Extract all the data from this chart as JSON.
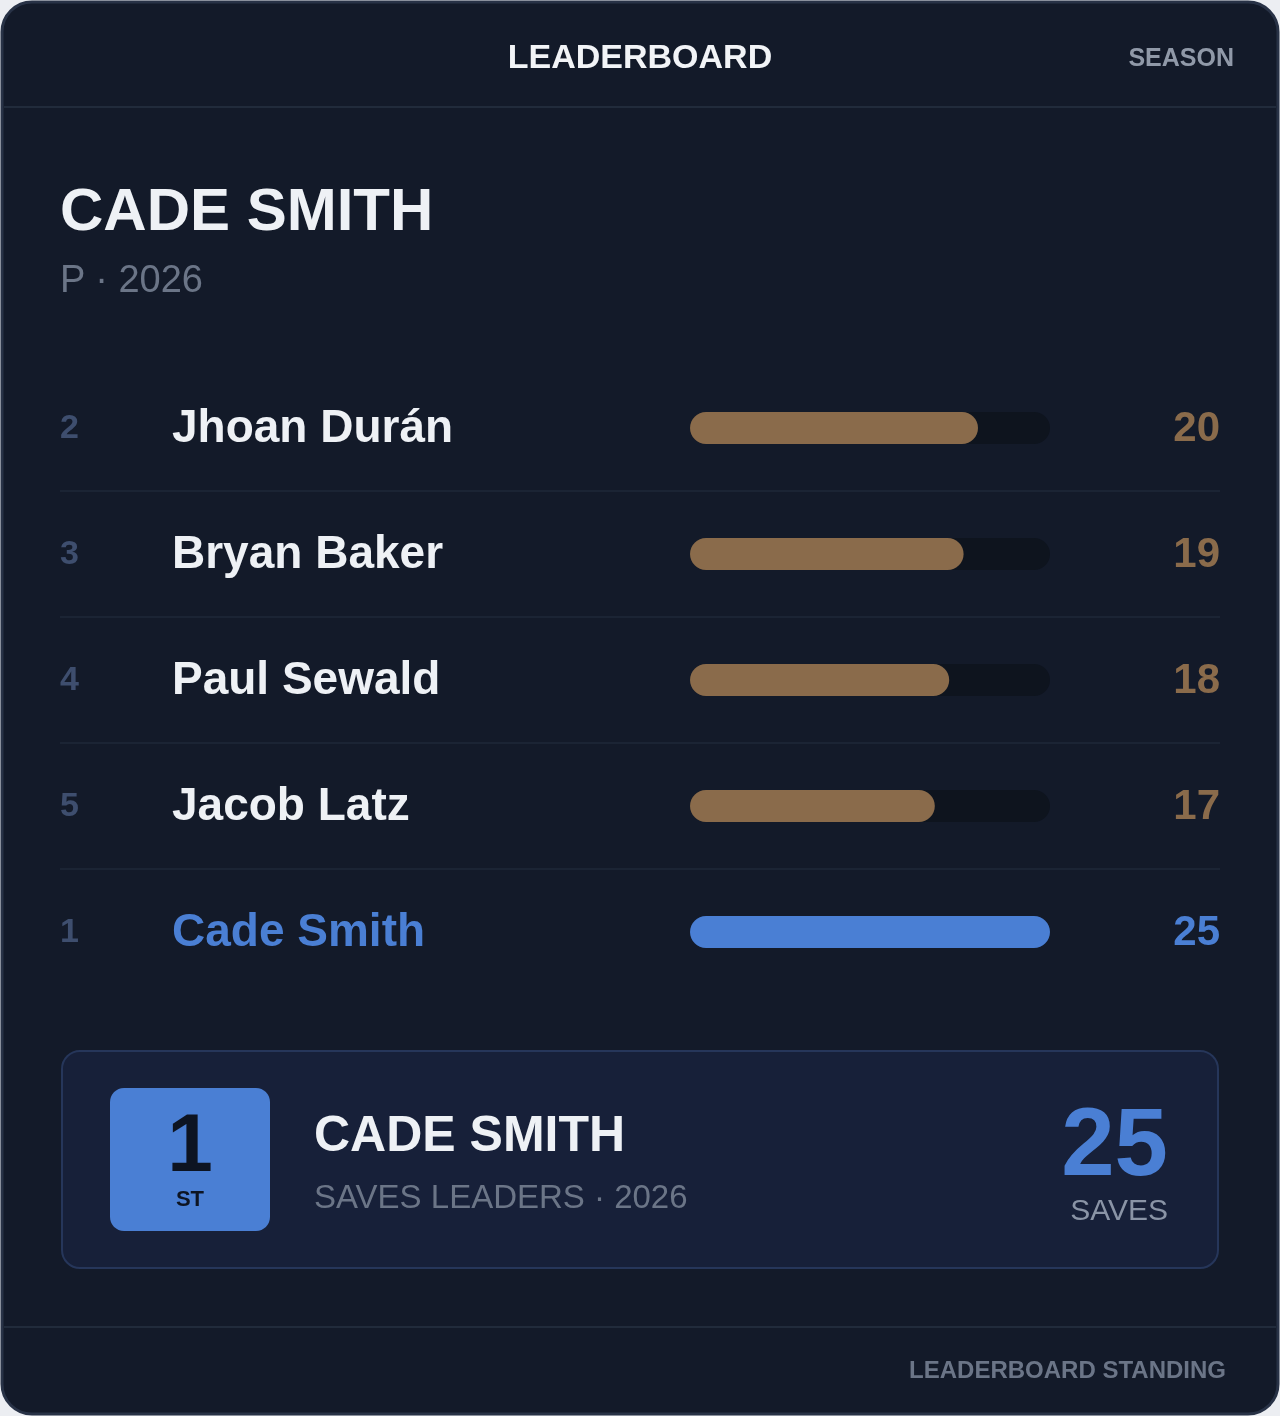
{
  "chart_data": {
    "type": "bar",
    "orientation": "horizontal",
    "title": "CADE SMITH",
    "subtitle": "P · 2026",
    "categories": [
      "Jhoan Durán",
      "Bryan Baker",
      "Paul Sewald",
      "Jacob Latz",
      "Cade Smith"
    ],
    "values": [
      20,
      19,
      18,
      17,
      25
    ],
    "colors": [
      "#8a6b4b",
      "#8a6b4b",
      "#8a6b4b",
      "#8a6b4b",
      "#4a7fd4"
    ],
    "xlim": [
      0,
      25
    ],
    "data_labels": true,
    "annotations": [
      "LEADERBOARD",
      "SEASON",
      "2",
      "3",
      "4",
      "5",
      "1",
      "1",
      "ST",
      "CADE SMITH",
      "SAVES LEADERS · 2026",
      "25",
      "SAVES",
      "LEADERBOARD STANDING"
    ]
  }
}
